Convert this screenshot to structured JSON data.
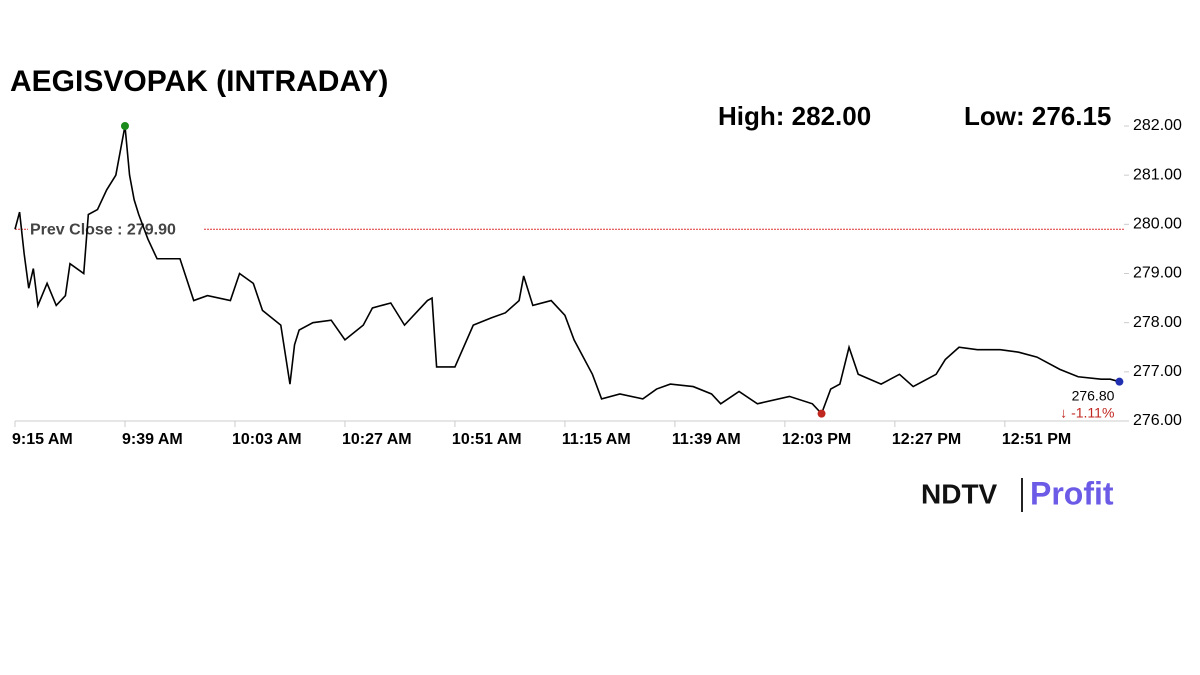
{
  "chart_data": {
    "type": "line",
    "title": "AEGISVOPAK (INTRADAY)",
    "high_label": "High: 282.00",
    "low_label": "Low: 276.15",
    "prev_close": {
      "value": 279.9,
      "label": "Prev Close : 279.90"
    },
    "last_label": "276.80",
    "change_label": "↓ -1.11%",
    "logo": {
      "left": "NDTV",
      "right": "Profit"
    },
    "x": [
      555,
      556,
      557,
      558,
      559,
      560,
      562,
      564,
      566,
      567,
      570,
      571,
      573,
      575,
      577,
      578,
      579,
      580,
      581,
      582,
      584,
      586,
      591,
      594,
      597,
      602,
      604,
      607,
      609,
      613,
      615,
      616,
      617,
      620,
      624,
      627,
      631,
      633,
      637,
      640,
      645,
      646,
      647,
      651,
      655,
      659,
      662,
      665,
      666,
      668,
      672,
      675,
      677,
      681,
      683,
      687,
      692,
      695,
      698,
      703,
      707,
      709,
      713,
      717,
      724,
      729,
      731,
      733,
      735,
      737,
      739,
      744,
      748,
      751,
      756,
      758,
      761,
      765,
      770,
      774,
      778,
      783,
      787,
      792,
      794,
      796
    ],
    "series": [
      {
        "color": "#000000",
        "values": [
          279.9,
          280.25,
          279.4,
          278.7,
          279.1,
          278.35,
          278.8,
          278.35,
          278.55,
          279.2,
          279.0,
          280.2,
          280.3,
          280.7,
          281.0,
          281.5,
          282.0,
          281.0,
          280.5,
          280.2,
          279.7,
          279.3,
          279.3,
          278.45,
          278.55,
          278.45,
          279.0,
          278.8,
          278.25,
          277.95,
          276.75,
          277.55,
          277.85,
          278.0,
          278.05,
          277.65,
          277.95,
          278.3,
          278.4,
          277.95,
          278.45,
          278.5,
          277.1,
          277.1,
          277.95,
          278.1,
          278.2,
          278.45,
          278.95,
          278.35,
          278.45,
          278.15,
          277.65,
          276.95,
          276.45,
          276.55,
          276.45,
          276.65,
          276.75,
          276.7,
          276.55,
          276.35,
          276.6,
          276.35,
          276.5,
          276.35,
          276.15,
          276.65,
          276.75,
          277.5,
          276.95,
          276.75,
          276.95,
          276.7,
          276.95,
          277.25,
          277.5,
          277.45,
          277.45,
          277.4,
          277.3,
          277.05,
          276.9,
          276.85,
          276.85,
          276.8
        ]
      }
    ],
    "xlim": [
      555,
      797
    ],
    "xticks": [
      {
        "value": 555,
        "label": "9:15 AM"
      },
      {
        "value": 579,
        "label": "9:39 AM"
      },
      {
        "value": 603,
        "label": "10:03 AM"
      },
      {
        "value": 627,
        "label": "10:27 AM"
      },
      {
        "value": 651,
        "label": "10:51 AM"
      },
      {
        "value": 675,
        "label": "11:15 AM"
      },
      {
        "value": 699,
        "label": "11:39 AM"
      },
      {
        "value": 723,
        "label": "12:03 PM"
      },
      {
        "value": 747,
        "label": "12:27 PM"
      },
      {
        "value": 771,
        "label": "12:51 PM"
      }
    ],
    "ylim": [
      276,
      282
    ],
    "yticks": [
      {
        "value": 276,
        "label": "276.00"
      },
      {
        "value": 277,
        "label": "277.00"
      },
      {
        "value": 278,
        "label": "278.00"
      },
      {
        "value": 279,
        "label": "279.00"
      },
      {
        "value": 280,
        "label": "280.00"
      },
      {
        "value": 281,
        "label": "281.00"
      },
      {
        "value": 282,
        "label": "282.00"
      }
    ]
  }
}
